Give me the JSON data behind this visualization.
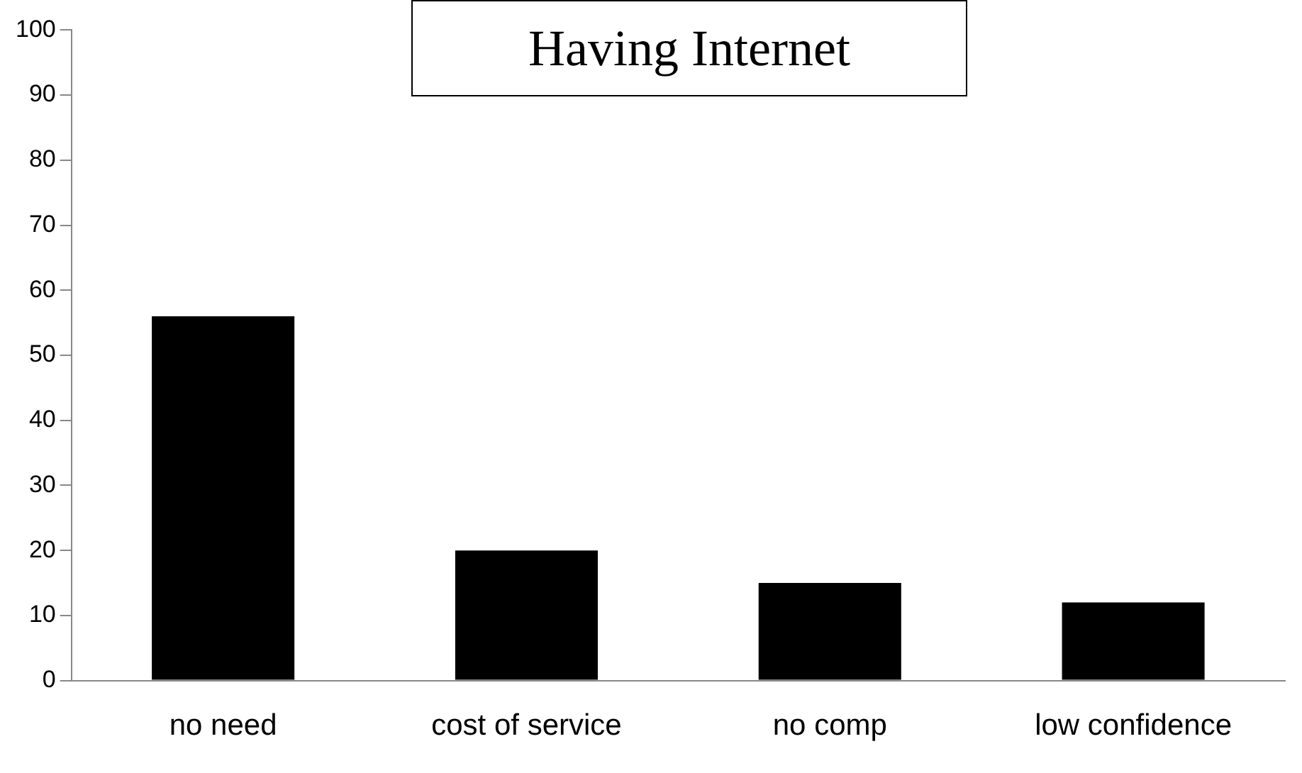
{
  "chart_data": {
    "type": "bar",
    "title": "Having Internet",
    "categories": [
      "no need",
      "cost of service",
      "no comp",
      "low confidence"
    ],
    "values": [
      56,
      20,
      15,
      12
    ],
    "color": "#000000",
    "ylim": [
      0,
      100
    ],
    "yticks": [
      0,
      10,
      20,
      30,
      40,
      50,
      60,
      70,
      80,
      90,
      100
    ],
    "grid": false
  }
}
